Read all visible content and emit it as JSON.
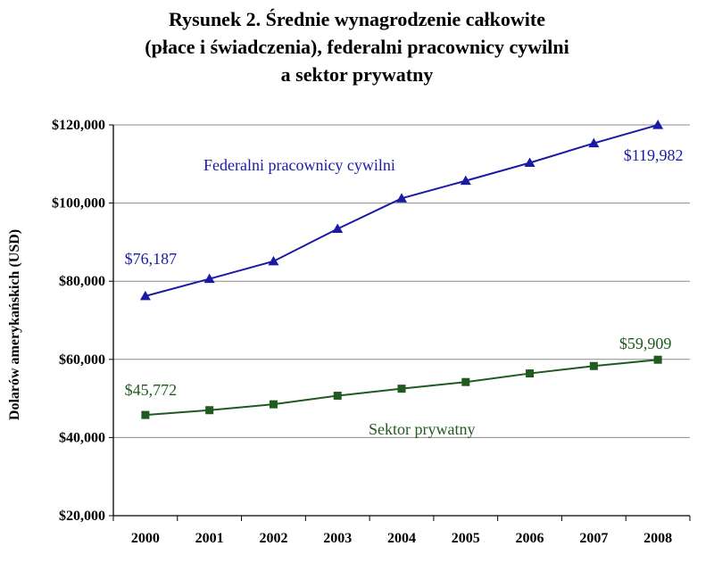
{
  "chart_data": {
    "type": "line",
    "title": [
      "Rysunek 2. Średnie wynagrodzenie całkowite",
      "(płace i świadczenia), federalni pracownicy cywilni",
      "a sektor prywatny"
    ],
    "ylabel": "Dolarów amerykańskich (USD)",
    "xlabel": "",
    "ylim": [
      20000,
      120000
    ],
    "yticks": [
      20000,
      40000,
      60000,
      80000,
      100000,
      120000
    ],
    "ytick_labels": [
      "$20,000",
      "$40,000",
      "$60,000",
      "$80,000",
      "$100,000",
      "$120,000"
    ],
    "categories": [
      "2000",
      "2001",
      "2002",
      "2003",
      "2004",
      "2005",
      "2006",
      "2007",
      "2008"
    ],
    "grid": true,
    "series": [
      {
        "name": "Federalni pracownicy cywilni",
        "color": "#1a1aa6",
        "marker": "triangle",
        "values": [
          76187,
          80600,
          85100,
          93400,
          101200,
          105700,
          110300,
          115300,
          119982
        ],
        "annotations": [
          {
            "index": 0,
            "text": "$76,187"
          },
          {
            "index": 8,
            "text": "$119,982"
          }
        ]
      },
      {
        "name": "Sektor prywatny",
        "color": "#1f5a1f",
        "marker": "square",
        "values": [
          45772,
          47000,
          48500,
          50700,
          52500,
          54200,
          56400,
          58300,
          59909
        ],
        "annotations": [
          {
            "index": 0,
            "text": "$45,772"
          },
          {
            "index": 8,
            "text": "$59,909"
          }
        ]
      }
    ]
  }
}
